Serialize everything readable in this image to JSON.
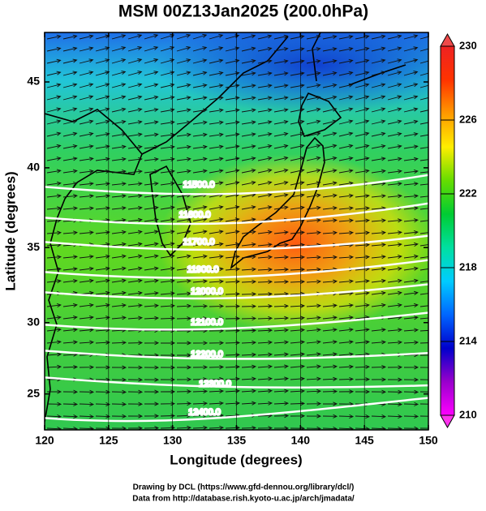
{
  "map": {
    "title": "MSM 00Z13Jan2025 (200.0hPa)",
    "x_label": "Longitude (degrees)",
    "y_label": "Latitude  (degrees)",
    "projection": "mercator",
    "xlim": [
      120,
      150
    ],
    "ylim": [
      22.4,
      47.7
    ],
    "xticks": [
      120,
      125,
      130,
      135,
      140,
      145,
      150
    ],
    "yticks": [
      25,
      30,
      35,
      40,
      45
    ],
    "colorbar": {
      "lim": [
        210,
        230
      ],
      "ticks": [
        210,
        214,
        218,
        222,
        226,
        230
      ],
      "colors": [
        "#ff00ff",
        "#9900cc",
        "#0000cc",
        "#0066ff",
        "#00ccff",
        "#00e0a0",
        "#00cc33",
        "#66dd00",
        "#ffee00",
        "#ff9900",
        "#ff3300",
        "#ee2222"
      ]
    },
    "contour_labels": [
      "11500.0",
      "11600.0",
      "11700.0",
      "11900.0",
      "12000.0",
      "12100.0",
      "12200.0",
      "12300.0",
      "12400.0"
    ],
    "footer": [
      "Drawing by DCL (https://www.gfd-dennou.org/library/dcl/)",
      "Data from http://database.rish.kyoto-u.ac.jp/arch/jmadata/"
    ]
  }
}
